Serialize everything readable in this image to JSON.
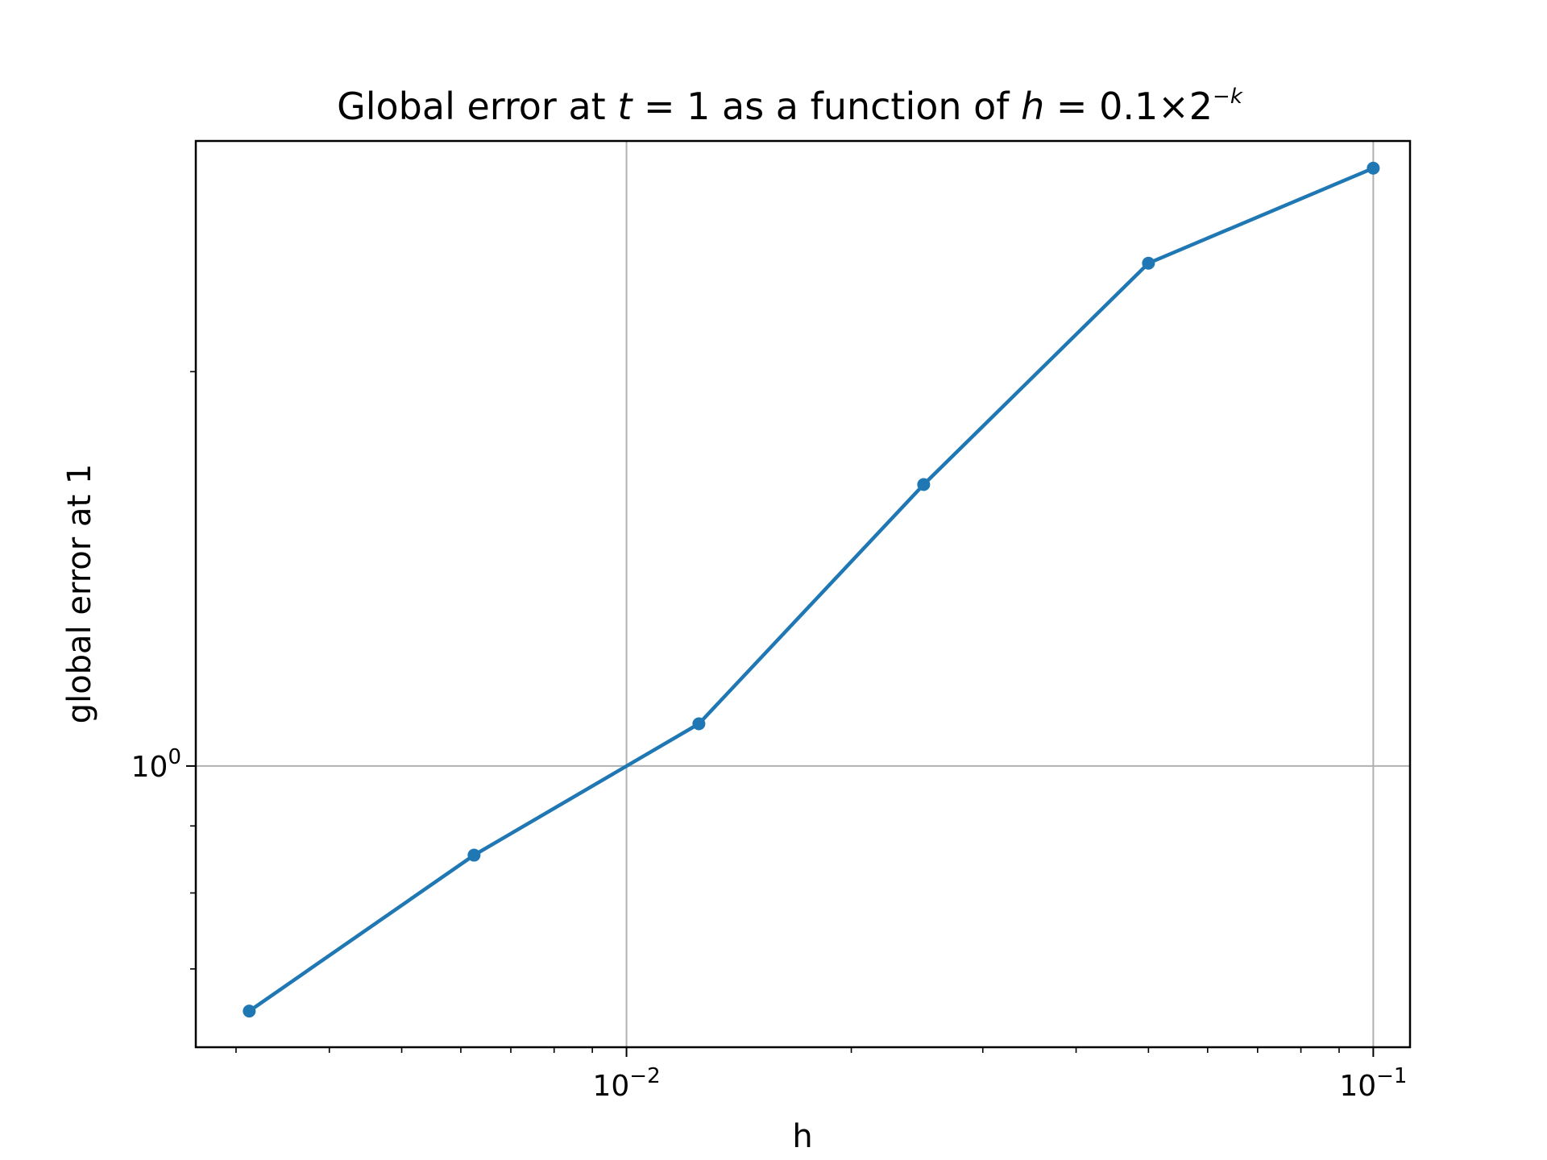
{
  "chart_data": {
    "type": "line",
    "title": {
      "pre": "Global error at ",
      "var1": "t",
      "eq1": " = 1 as a function of ",
      "var2": "h",
      "eq2": " = 0.1×2",
      "sup": "−k"
    },
    "xlabel": "h",
    "ylabel": "global error at 1",
    "xscale": "log",
    "yscale": "log",
    "xlim": [
      0.00265,
      0.112
    ],
    "ylim": [
      0.61,
      3.0
    ],
    "grid": true,
    "x_ticks": [
      {
        "value": 0.01,
        "base": "10",
        "exp": "−2"
      },
      {
        "value": 0.1,
        "base": "10",
        "exp": "−1"
      }
    ],
    "y_ticks": [
      {
        "value": 1.0,
        "base": "10",
        "exp": "0"
      }
    ],
    "series": [
      {
        "color": "#1f77b4",
        "marker": "circle",
        "x": [
          0.003125,
          0.00625,
          0.0125,
          0.025,
          0.05,
          0.1
        ],
        "y": [
          0.65,
          0.855,
          1.077,
          1.64,
          2.42,
          2.86
        ]
      }
    ]
  }
}
